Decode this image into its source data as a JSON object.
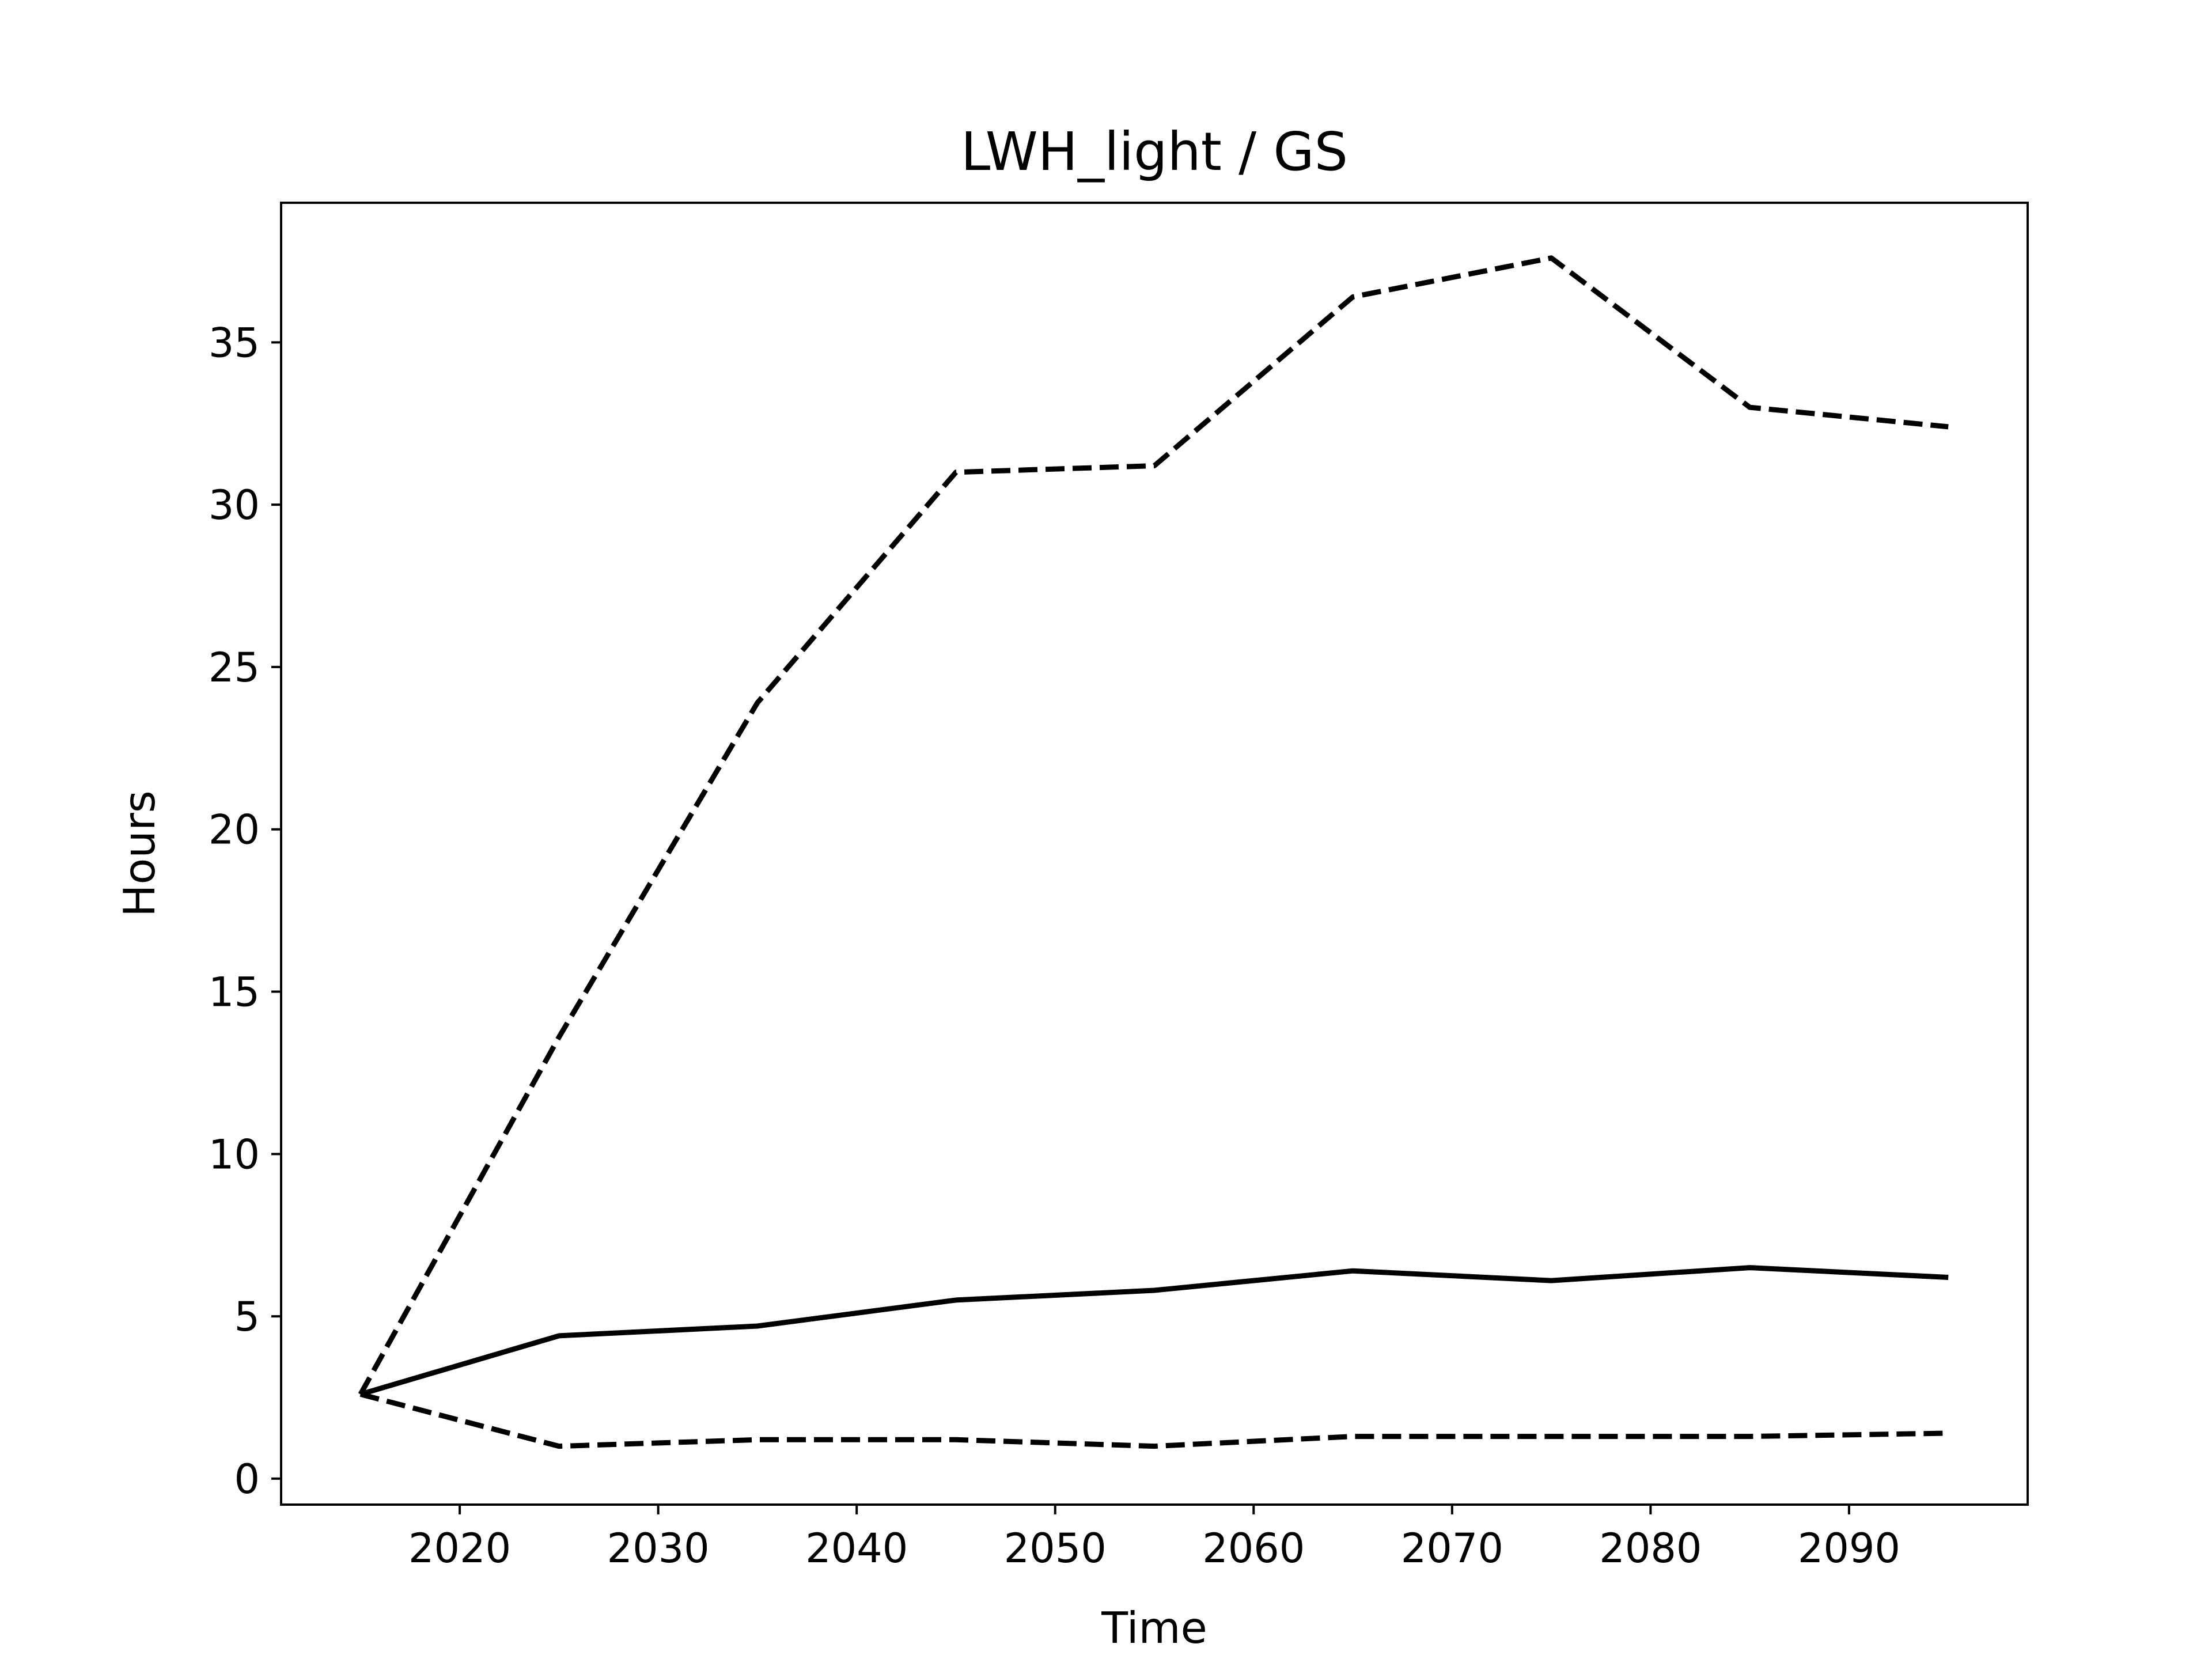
{
  "chart_data": {
    "type": "line",
    "title": "LWH_light / GS",
    "xlabel": "Time",
    "ylabel": "Hours",
    "xlim": [
      2011,
      2099
    ],
    "ylim": [
      -0.8,
      39.3
    ],
    "xticks": [
      2020,
      2030,
      2040,
      2050,
      2060,
      2070,
      2080,
      2090
    ],
    "yticks": [
      0,
      5,
      10,
      15,
      20,
      25,
      30,
      35
    ],
    "grid": false,
    "legend": "none",
    "x": [
      2015,
      2025,
      2035,
      2045,
      2055,
      2065,
      2075,
      2085,
      2095
    ],
    "series": [
      {
        "style": "solid",
        "color": "#000000",
        "values": [
          2.6,
          4.4,
          4.7,
          5.5,
          5.8,
          6.4,
          6.1,
          6.5,
          6.2
        ]
      },
      {
        "style": "dashed",
        "color": "#000000",
        "values": [
          2.6,
          13.6,
          23.9,
          31.0,
          31.2,
          36.4,
          37.6,
          33.0,
          32.4
        ]
      },
      {
        "style": "dashed",
        "color": "#000000",
        "values": [
          2.6,
          1.0,
          1.2,
          1.2,
          1.0,
          1.3,
          1.3,
          1.3,
          1.4
        ]
      }
    ]
  }
}
